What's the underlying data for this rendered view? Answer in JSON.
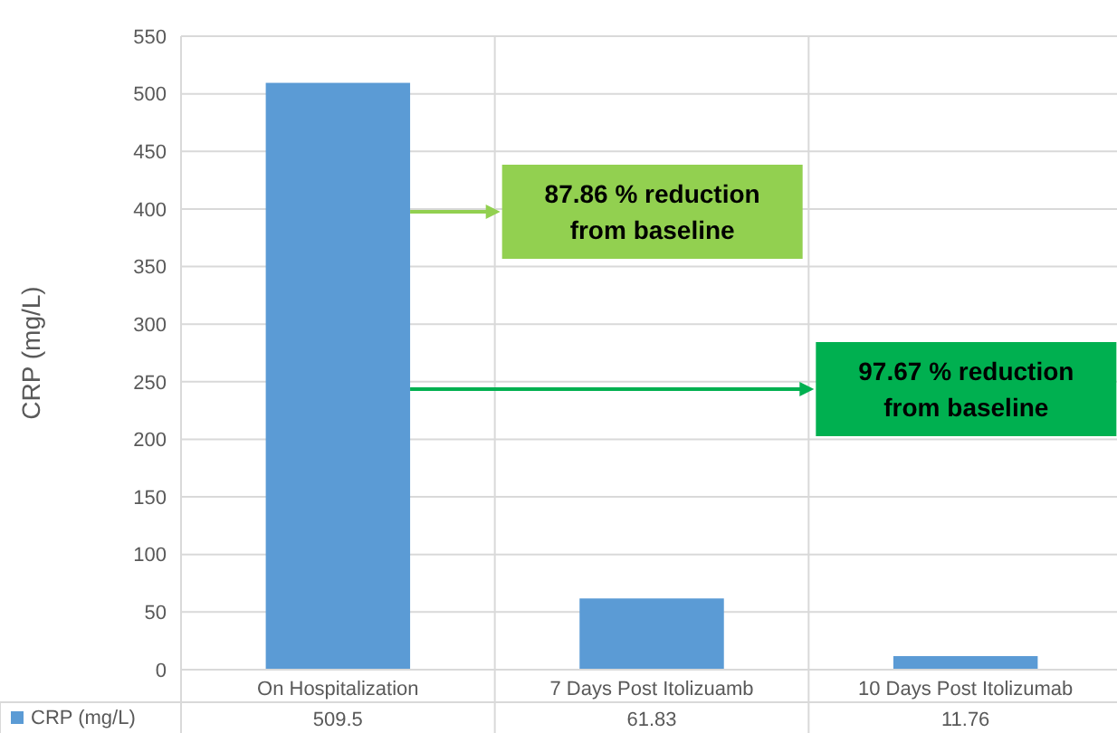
{
  "chart_data": {
    "type": "bar",
    "ylabel": "CRP (mg/L)",
    "categories": [
      "On Hospitalization",
      "7 Days Post Itolizuamb",
      "10 Days Post Itolizumab"
    ],
    "series": [
      {
        "name": "CRP (mg/L)",
        "color": "#5b9bd5",
        "values": [
          509.5,
          61.83,
          11.76
        ]
      }
    ],
    "ylim": [
      0,
      550
    ],
    "yticks": [
      0,
      50,
      100,
      150,
      200,
      250,
      300,
      350,
      400,
      450,
      500,
      550
    ],
    "grid": true,
    "legend": "bottom",
    "data_labels": true,
    "annotations": [
      "87.86 % reduction from baseline",
      "97.67 % reduction from baseline"
    ]
  }
}
